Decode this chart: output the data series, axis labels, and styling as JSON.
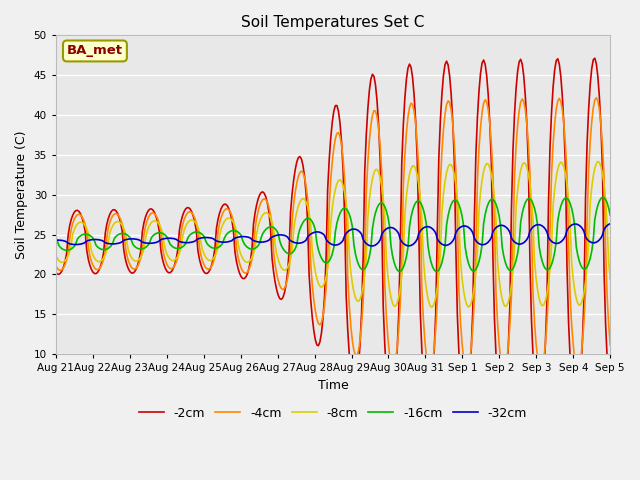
{
  "title": "Soil Temperatures Set C",
  "xlabel": "Time",
  "ylabel": "Soil Temperature (C)",
  "annotation": "BA_met",
  "ylim": [
    10,
    50
  ],
  "yticks": [
    10,
    15,
    20,
    25,
    30,
    35,
    40,
    45,
    50
  ],
  "xtick_labels": [
    "Aug 21",
    "Aug 22",
    "Aug 23",
    "Aug 24",
    "Aug 25",
    "Aug 26",
    "Aug 27",
    "Aug 28",
    "Aug 29",
    "Aug 30",
    "Aug 31",
    "Sep 1",
    "Sep 2",
    "Sep 3",
    "Sep 4",
    "Sep 5"
  ],
  "series_colors": [
    "#cc0000",
    "#ff8800",
    "#ddcc00",
    "#00bb00",
    "#0000cc"
  ],
  "series_labels": [
    "-2cm",
    "-4cm",
    "-8cm",
    "-16cm",
    "-32cm"
  ],
  "fig_bg": "#f0f0f0",
  "plot_bg": "#e8e8e8",
  "line_width": 1.2,
  "n_points": 360
}
